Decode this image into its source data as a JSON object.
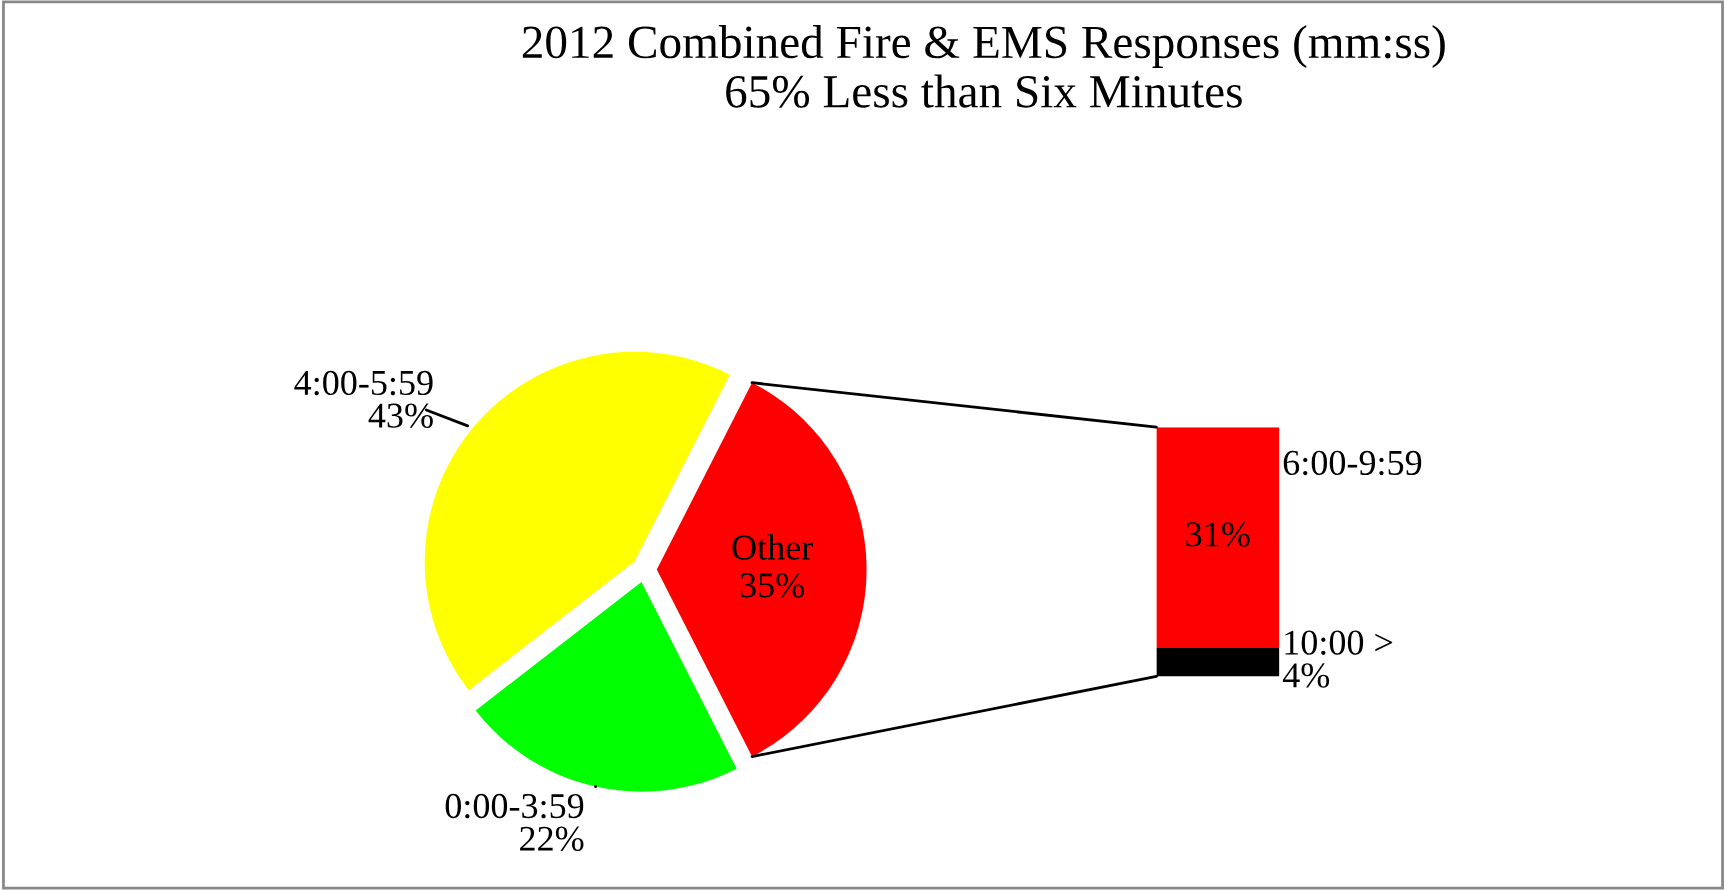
{
  "chart_data": [
    {
      "type": "pie",
      "title": "2012 Combined Fire & EMS Responses (mm:ss)\n65% Less than Six Minutes",
      "categories": [
        "Other",
        "4:00-5:59",
        "0:00-3:59"
      ],
      "values": [
        35,
        43,
        22
      ],
      "colors": [
        "#ff0000",
        "#ffff00",
        "#00ff00"
      ],
      "value_labels": [
        "35%",
        "43%",
        "22%"
      ]
    },
    {
      "type": "bar",
      "stacked": true,
      "categories": [
        null
      ],
      "series": [
        {
          "name": "10:00 >",
          "color": "#000000",
          "values": [
            4
          ],
          "value_labels": [
            "4%"
          ]
        },
        {
          "name": "6:00-9:59",
          "color": "#ff0000",
          "values": [
            31
          ],
          "value_labels": [
            "31%"
          ]
        }
      ]
    }
  ]
}
